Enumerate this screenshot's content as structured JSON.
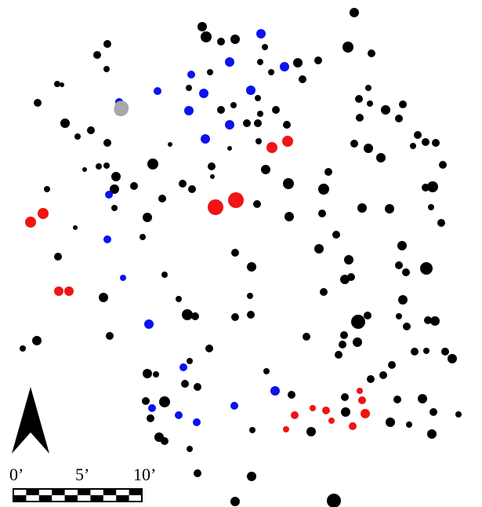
{
  "map": {
    "colors": {
      "default": "#000000",
      "blue": "#0a12f0",
      "red": "#f01414",
      "gray": "#a8a8a8",
      "background": "#ffffff"
    },
    "north_arrow": {
      "icon": "north-arrow-icon"
    },
    "scale_bar": {
      "labels": [
        "0’",
        "5’",
        "10’"
      ],
      "segments": 10
    },
    "legend": []
  }
}
